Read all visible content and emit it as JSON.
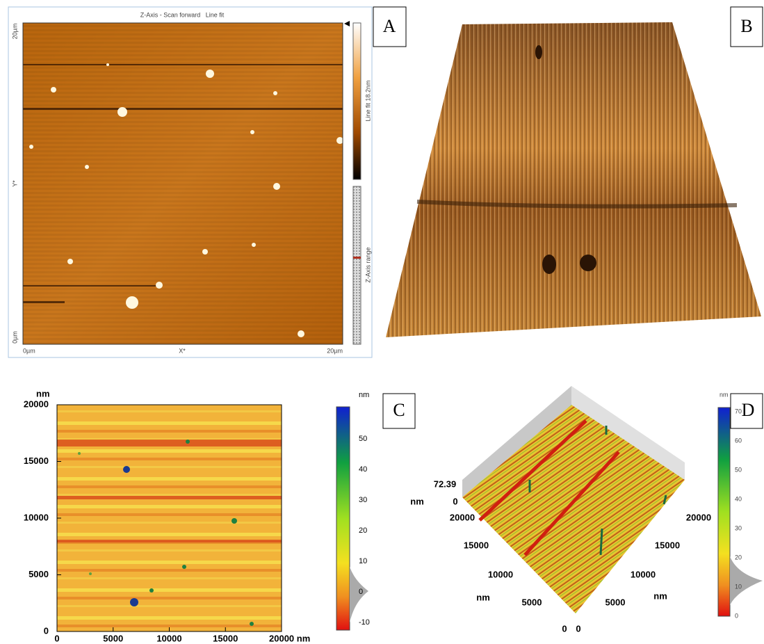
{
  "panel_a": {
    "letter": "A",
    "title": "Z-Axis - Scan forward   Line fit",
    "y_max": "20µm",
    "y_label": "Y*",
    "y_min": "0µm",
    "x_min": "0µm",
    "x_label": "X*",
    "x_max": "20µm",
    "colorbar_label": "Line fit 18.2nm",
    "range_label": "Z-Axis range"
  },
  "panel_b": {
    "letter": "B"
  },
  "panel_c": {
    "letter": "C",
    "unit": "nm",
    "yticks": [
      "20000",
      "15000",
      "10000",
      "5000",
      "0"
    ],
    "xticks": [
      "0",
      "5000",
      "10000",
      "15000",
      "20000 nm"
    ],
    "colorbar_unit": "nm",
    "colorbar_ticks": [
      "50",
      "40",
      "30",
      "20",
      "10",
      "0",
      "-10"
    ]
  },
  "panel_d": {
    "letter": "D",
    "z_max": "72.39",
    "z_unit": "nm",
    "z_min": "0",
    "left_ticks": [
      "20000",
      "15000",
      "10000",
      "5000",
      "0"
    ],
    "left_unit": "nm",
    "right_ticks": [
      "20000",
      "15000",
      "10000",
      "5000",
      "0"
    ],
    "right_unit": "nm",
    "colorbar_unit": "nm",
    "colorbar_ticks": [
      "70",
      "60",
      "50",
      "40",
      "30",
      "20",
      "10",
      "0"
    ]
  }
}
